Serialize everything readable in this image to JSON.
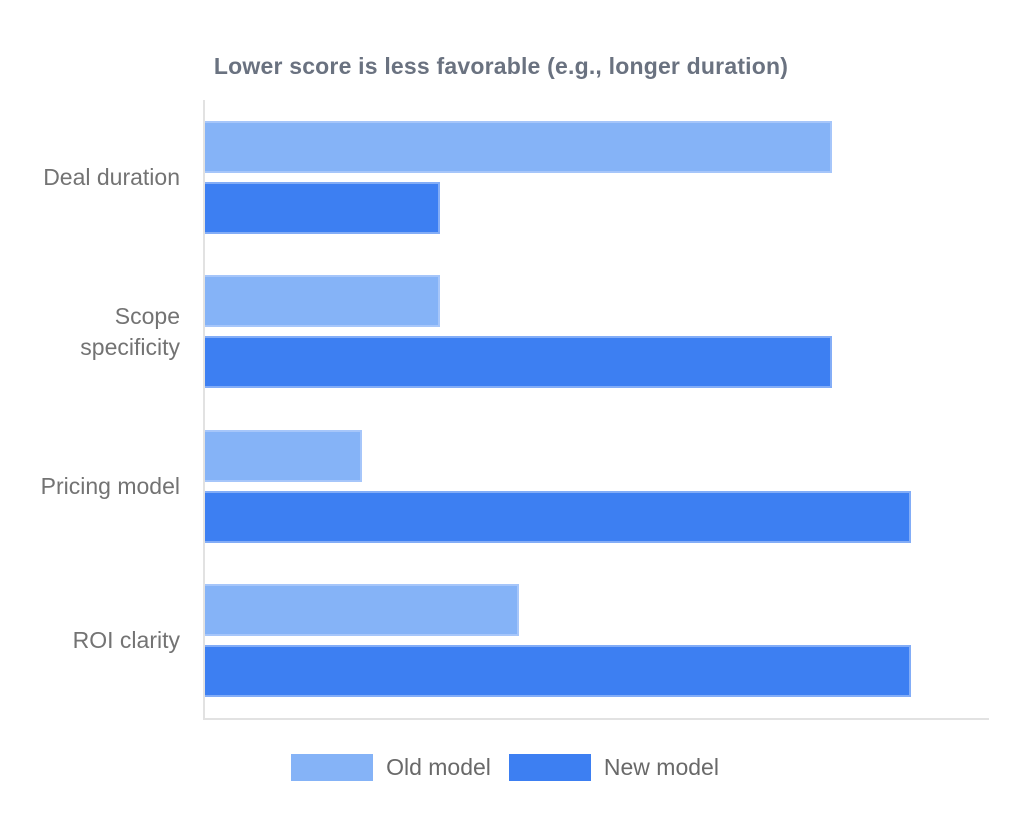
{
  "chart_data": {
    "type": "bar",
    "orientation": "horizontal",
    "title": "Lower score is less favorable (e.g., longer duration)",
    "categories": [
      "Deal duration",
      "Scope specificity",
      "Pricing model",
      "ROI clarity"
    ],
    "series": [
      {
        "name": "Old model",
        "color": "#85B3F7",
        "border_color": "#A6C6FA",
        "values": [
          8,
          3,
          2,
          4
        ]
      },
      {
        "name": "New model",
        "color": "#3D7FF2",
        "border_color": "#83ADF7",
        "values": [
          3,
          8,
          9,
          9
        ]
      }
    ],
    "xlim": [
      0,
      10
    ],
    "x_ticks_visible": false,
    "grid": false,
    "legend_position": "bottom",
    "axis_color": "#E2E2E2",
    "title_color": "#6A7280",
    "category_label_color": "#737373",
    "legend_text_color": "#696969",
    "background_color": "#FFFFFF"
  }
}
